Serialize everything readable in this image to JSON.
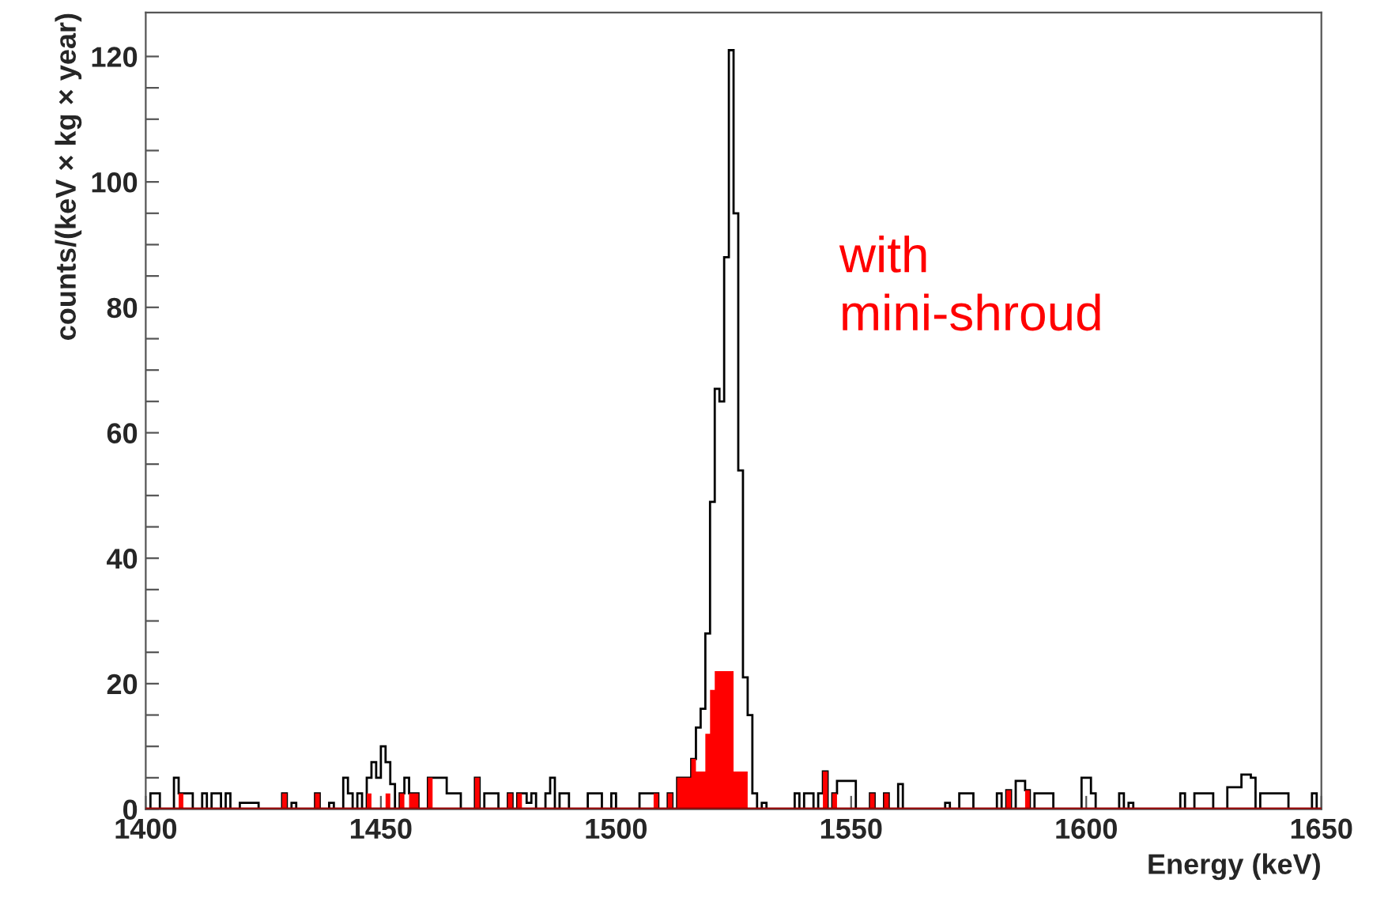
{
  "chart_data": {
    "type": "histogram",
    "xlabel": "Energy (keV)",
    "ylabel": "counts/(keV × kg × year)",
    "annotations": [
      "with\nmini-shroud"
    ],
    "bins": [
      1400,
      1401,
      1402,
      1403,
      1404,
      1405,
      1406,
      1407,
      1408,
      1409,
      1410,
      1411,
      1412,
      1413,
      1414,
      1415,
      1416,
      1417,
      1418,
      1419,
      1420,
      1421,
      1422,
      1423,
      1424,
      1425,
      1426,
      1427,
      1428,
      1429,
      1430,
      1431,
      1432,
      1433,
      1434,
      1435,
      1436,
      1437,
      1438,
      1439,
      1440,
      1441,
      1442,
      1443,
      1444,
      1445,
      1446,
      1447,
      1448,
      1449,
      1450,
      1451,
      1452,
      1453,
      1454,
      1455,
      1456,
      1457,
      1458,
      1459,
      1460,
      1461,
      1462,
      1463,
      1464,
      1465,
      1466,
      1467,
      1468,
      1469,
      1470,
      1471,
      1472,
      1473,
      1474,
      1475,
      1476,
      1477,
      1478,
      1479,
      1480,
      1481,
      1482,
      1483,
      1484,
      1485,
      1486,
      1487,
      1488,
      1489,
      1490,
      1491,
      1492,
      1493,
      1494,
      1495,
      1496,
      1497,
      1498,
      1499,
      1500,
      1501,
      1502,
      1503,
      1504,
      1505,
      1506,
      1507,
      1508,
      1509,
      1510,
      1511,
      1512,
      1513,
      1514,
      1515,
      1516,
      1517,
      1518,
      1519,
      1520,
      1521,
      1522,
      1523,
      1524,
      1525,
      1526,
      1527,
      1528,
      1529,
      1530,
      1531,
      1532,
      1533,
      1534,
      1535,
      1536,
      1537,
      1538,
      1539,
      1540,
      1541,
      1542,
      1543,
      1544,
      1545,
      1546,
      1547,
      1548,
      1549,
      1550,
      1551,
      1552,
      1553,
      1554,
      1555,
      1556,
      1557,
      1558,
      1559,
      1560,
      1561,
      1562,
      1563,
      1564,
      1565,
      1566,
      1567,
      1568,
      1569,
      1570,
      1571,
      1572,
      1573,
      1574,
      1575,
      1576,
      1577,
      1578,
      1579,
      1580,
      1581,
      1582,
      1583,
      1584,
      1585,
      1586,
      1587,
      1588,
      1589,
      1590,
      1591,
      1592,
      1593,
      1594,
      1595,
      1596,
      1597,
      1598,
      1599,
      1600,
      1601,
      1602,
      1603,
      1604,
      1605,
      1606,
      1607,
      1608,
      1609,
      1610,
      1611,
      1612,
      1613,
      1614,
      1615,
      1616,
      1617,
      1618,
      1619,
      1620,
      1621,
      1622,
      1623,
      1624,
      1625,
      1626,
      1627,
      1628,
      1629,
      1630,
      1631,
      1632,
      1633,
      1634,
      1635,
      1636,
      1637,
      1638,
      1639,
      1640,
      1641,
      1642,
      1643,
      1644,
      1645,
      1646,
      1647,
      1648,
      1649,
      1650
    ],
    "series": [
      {
        "color": "#000000",
        "values": [
          0,
          2.5,
          2.5,
          0,
          0,
          0,
          5,
          2.5,
          2.5,
          2.5,
          0,
          0,
          2.5,
          0,
          2.5,
          2.5,
          0,
          2.5,
          0,
          0,
          1,
          1,
          1,
          1,
          0,
          0,
          0,
          0,
          0,
          2.5,
          0,
          1,
          0,
          0,
          0,
          0,
          2.5,
          0,
          0,
          1,
          0,
          0,
          5,
          2.5,
          0,
          2.5,
          0,
          5,
          7.5,
          5,
          10,
          7.5,
          4,
          0,
          2.5,
          5,
          2.5,
          2.5,
          0,
          0,
          5,
          5,
          5,
          5,
          2.5,
          2.5,
          2.5,
          0,
          0,
          0,
          5,
          0,
          2.5,
          2.5,
          2.5,
          0,
          0,
          2.5,
          0,
          2.5,
          2.5,
          1,
          2.5,
          0,
          0,
          2.5,
          5,
          0,
          2.5,
          2.5,
          0,
          0,
          0,
          0,
          2.5,
          2.5,
          2.5,
          0,
          0,
          2.5,
          0,
          0,
          0,
          0,
          0,
          2.5,
          2.5,
          2.5,
          2.5,
          0,
          0,
          2.5,
          0,
          5,
          5,
          5,
          8,
          13,
          16,
          28,
          49,
          67,
          65,
          88,
          121,
          95,
          54,
          21,
          15,
          2.5,
          0,
          1,
          0,
          0,
          0,
          0,
          0,
          0,
          2.5,
          0,
          2.5,
          2.5,
          0,
          2.5,
          6,
          0,
          2.5,
          4.5,
          4.5,
          4.5,
          4.5,
          0,
          0,
          0,
          2.5,
          0,
          0,
          2.5,
          0,
          0,
          4,
          0,
          0,
          0,
          0,
          0,
          0,
          0,
          0,
          0,
          1,
          0,
          0,
          2.5,
          2.5,
          2.5,
          0,
          0,
          0,
          0,
          0,
          2.5,
          0,
          3,
          0,
          4.5,
          4.5,
          3,
          0,
          2.5,
          2.5,
          2.5,
          2.5,
          0,
          0,
          0,
          0,
          0,
          0,
          5,
          5,
          2.5,
          0,
          0,
          0,
          0,
          0,
          2.5,
          0,
          1,
          0,
          0,
          0,
          0,
          0,
          0,
          0,
          0,
          0,
          0,
          2.5,
          0,
          0,
          2.5,
          2.5,
          2.5,
          2.5,
          0,
          0,
          0,
          3.5,
          3.5,
          3.5,
          5.5,
          5.5,
          5,
          0,
          2.5,
          2.5,
          2.5,
          2.5,
          2.5,
          2.5,
          0,
          0,
          0,
          0,
          0,
          2.5,
          0
        ]
      },
      {
        "color": "#ff0000",
        "values": [
          0,
          0,
          0,
          0,
          0,
          0,
          0,
          2.5,
          0,
          0,
          0,
          0,
          0,
          0,
          0,
          0,
          0,
          0,
          0,
          0,
          0,
          0,
          0,
          0,
          0,
          0,
          0,
          0,
          0,
          2.5,
          0,
          0,
          0,
          0,
          0,
          0,
          2.5,
          0,
          0,
          0,
          0,
          0,
          0,
          0,
          0,
          0,
          0,
          2.5,
          0,
          0,
          0,
          2.5,
          0,
          0,
          2.5,
          0,
          2.5,
          2.5,
          0,
          0,
          5,
          0,
          0,
          0,
          0,
          0,
          0,
          0,
          0,
          0,
          5,
          0,
          0,
          0,
          0,
          0,
          0,
          2.5,
          0,
          2.5,
          0,
          0,
          0,
          0,
          0,
          0,
          0,
          0,
          0,
          0,
          0,
          0,
          0,
          0,
          0,
          0,
          0,
          0,
          0,
          0,
          0,
          0,
          0,
          0,
          0,
          0,
          0,
          0,
          2.5,
          0,
          0,
          2.5,
          0,
          5,
          5,
          5,
          8,
          6,
          6,
          12,
          19,
          22,
          22,
          22,
          22,
          6,
          6,
          6,
          0,
          0,
          0,
          0,
          0,
          0,
          0,
          0,
          0,
          0,
          0,
          0,
          0,
          0,
          0,
          0,
          6,
          0,
          2.5,
          0,
          0,
          0,
          0,
          0,
          0,
          0,
          2.5,
          0,
          0,
          2.5,
          0,
          0,
          0,
          0,
          0,
          0,
          0,
          0,
          0,
          0,
          0,
          0,
          0,
          0,
          0,
          0,
          0,
          0,
          0,
          0,
          0,
          0,
          0,
          0,
          0,
          3,
          0,
          0,
          0,
          3,
          0,
          0,
          0,
          0,
          0,
          0,
          0,
          0,
          0,
          0,
          0,
          0,
          0,
          0,
          0,
          0,
          0,
          0,
          0,
          0,
          0,
          0,
          0,
          0,
          0,
          0,
          0,
          0,
          0,
          0,
          0,
          0,
          0,
          0,
          0,
          0,
          0,
          0,
          0,
          0,
          0,
          0,
          0,
          0,
          0,
          0,
          0,
          0,
          0,
          0,
          0,
          0,
          0,
          0,
          0,
          0,
          0,
          0,
          0,
          0,
          0,
          0
        ]
      }
    ],
    "xlim": [
      1400,
      1650
    ],
    "xticks": [
      1400,
      1450,
      1500,
      1550,
      1600,
      1650
    ],
    "ylim": [
      0,
      127
    ],
    "yticks": [
      0,
      {
        "value": 5,
        "label": null
      },
      {
        "value": 10,
        "label": null
      },
      {
        "value": 15,
        "label": null
      },
      20,
      {
        "value": 25,
        "label": null
      },
      {
        "value": 30,
        "label": null
      },
      {
        "value": 35,
        "label": null
      },
      40,
      {
        "value": 45,
        "label": null
      },
      {
        "value": 50,
        "label": null
      },
      {
        "value": 55,
        "label": null
      },
      60,
      {
        "value": 65,
        "label": null
      },
      {
        "value": 70,
        "label": null
      },
      {
        "value": 75,
        "label": null
      },
      80,
      {
        "value": 85,
        "label": null
      },
      {
        "value": 90,
        "label": null
      },
      {
        "value": 95,
        "label": null
      },
      100,
      {
        "value": 105,
        "label": null
      },
      {
        "value": 110,
        "label": null
      },
      {
        "value": 115,
        "label": null
      },
      120
    ],
    "grid": false,
    "legend": false
  }
}
